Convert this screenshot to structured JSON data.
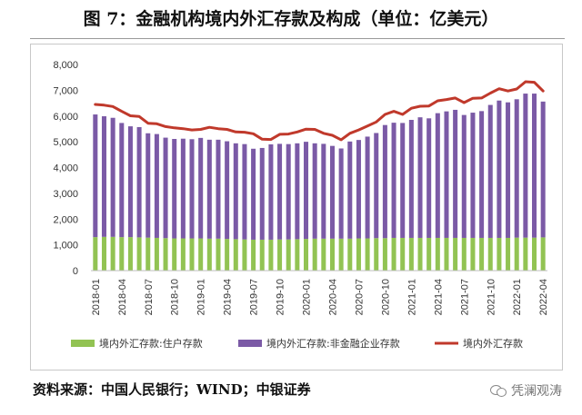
{
  "title": "图 7：金融机构境内外汇存款及构成（单位：亿美元）",
  "source": "资料来源：中国人民银行；WIND；中银证券",
  "watermark": "凭澜观涛",
  "chart_data": {
    "type": "bar",
    "stacked": true,
    "categories": [
      "2018-01",
      "2018-02",
      "2018-03",
      "2018-04",
      "2018-05",
      "2018-06",
      "2018-07",
      "2018-08",
      "2018-09",
      "2018-10",
      "2018-11",
      "2018-12",
      "2019-01",
      "2019-02",
      "2019-03",
      "2019-04",
      "2019-05",
      "2019-06",
      "2019-07",
      "2019-08",
      "2019-09",
      "2019-10",
      "2019-11",
      "2019-12",
      "2020-01",
      "2020-02",
      "2020-03",
      "2020-04",
      "2020-05",
      "2020-06",
      "2020-07",
      "2020-08",
      "2020-09",
      "2020-10",
      "2020-11",
      "2020-12",
      "2021-01",
      "2021-02",
      "2021-03",
      "2021-04",
      "2021-05",
      "2021-06",
      "2021-07",
      "2021-08",
      "2021-09",
      "2021-10",
      "2021-11",
      "2021-12",
      "2022-01",
      "2022-02",
      "2022-03",
      "2022-04"
    ],
    "x_tick_labels": [
      "2018-01",
      "2018-04",
      "2018-07",
      "2018-10",
      "2019-01",
      "2019-04",
      "2019-07",
      "2019-10",
      "2020-01",
      "2020-04",
      "2020-07",
      "2020-10",
      "2021-01",
      "2021-04",
      "2021-07",
      "2021-10",
      "2022-01",
      "2022-04"
    ],
    "series": [
      {
        "name": "境内外汇存款:住户存款",
        "kind": "bar",
        "color": "#92c353",
        "values": [
          1300,
          1310,
          1310,
          1300,
          1300,
          1290,
          1280,
          1270,
          1260,
          1250,
          1250,
          1250,
          1250,
          1240,
          1240,
          1230,
          1220,
          1210,
          1200,
          1200,
          1200,
          1210,
          1210,
          1220,
          1230,
          1240,
          1240,
          1240,
          1240,
          1240,
          1250,
          1250,
          1260,
          1260,
          1270,
          1270,
          1270,
          1270,
          1270,
          1270,
          1270,
          1270,
          1270,
          1270,
          1270,
          1270,
          1270,
          1270,
          1280,
          1280,
          1280,
          1290
        ]
      },
      {
        "name": "境内外汇存款:非金融企业存款",
        "kind": "bar",
        "color": "#7b5aa6",
        "values": [
          4760,
          4680,
          4620,
          4430,
          4300,
          4280,
          4050,
          4030,
          3900,
          3860,
          3870,
          3850,
          3900,
          3840,
          3840,
          3790,
          3720,
          3700,
          3530,
          3560,
          3700,
          3710,
          3700,
          3720,
          3770,
          3700,
          3680,
          3600,
          3500,
          3770,
          3820,
          3950,
          4080,
          4390,
          4470,
          4460,
          4580,
          4680,
          4640,
          4840,
          4910,
          4970,
          4770,
          4860,
          4920,
          5160,
          5330,
          5260,
          5370,
          5590,
          5590,
          5270
        ]
      },
      {
        "name": "境内外汇存款",
        "kind": "line",
        "color": "#c0392b",
        "values": [
          6450,
          6420,
          6370,
          6180,
          6010,
          5980,
          5720,
          5700,
          5590,
          5540,
          5510,
          5460,
          5480,
          5560,
          5510,
          5480,
          5380,
          5370,
          5310,
          5100,
          5090,
          5290,
          5300,
          5380,
          5490,
          5480,
          5330,
          5250,
          5080,
          5330,
          5460,
          5610,
          5770,
          6060,
          6180,
          6060,
          6300,
          6380,
          6390,
          6590,
          6640,
          6700,
          6520,
          6690,
          6700,
          6890,
          7060,
          6970,
          7050,
          7330,
          7310,
          6970
        ]
      }
    ],
    "ylim": [
      0,
      8000
    ],
    "y_ticks": [
      "0",
      "1,000",
      "2,000",
      "3,000",
      "4,000",
      "5,000",
      "6,000",
      "7,000",
      "8,000"
    ],
    "grid": false,
    "legend_position": "bottom"
  }
}
